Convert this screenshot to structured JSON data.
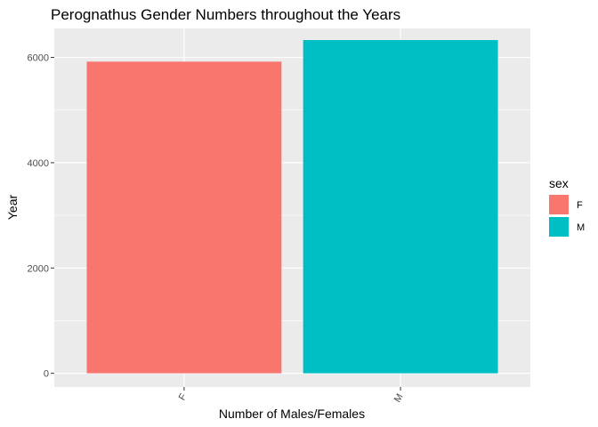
{
  "chart_data": {
    "type": "bar",
    "title": "Perognathus Gender Numbers throughout the Years",
    "xlabel": "Number of Males/Females",
    "ylabel": "Year",
    "categories": [
      "F",
      "M"
    ],
    "values": [
      5920,
      6330
    ],
    "ylim": [
      -260,
      6550
    ],
    "yticks": [
      0,
      2000,
      4000,
      6000
    ],
    "ytick_labels": [
      "0",
      "2000",
      "4000",
      "6000"
    ],
    "grid": true,
    "legend": {
      "title": "sex",
      "placement": "right",
      "entries": [
        {
          "label": "F",
          "color": "#F8766D"
        },
        {
          "label": "M",
          "color": "#00BFC4"
        }
      ]
    },
    "colors": [
      "#F8766D",
      "#00BFC4"
    ],
    "panel_background": "#EBEBEB"
  }
}
